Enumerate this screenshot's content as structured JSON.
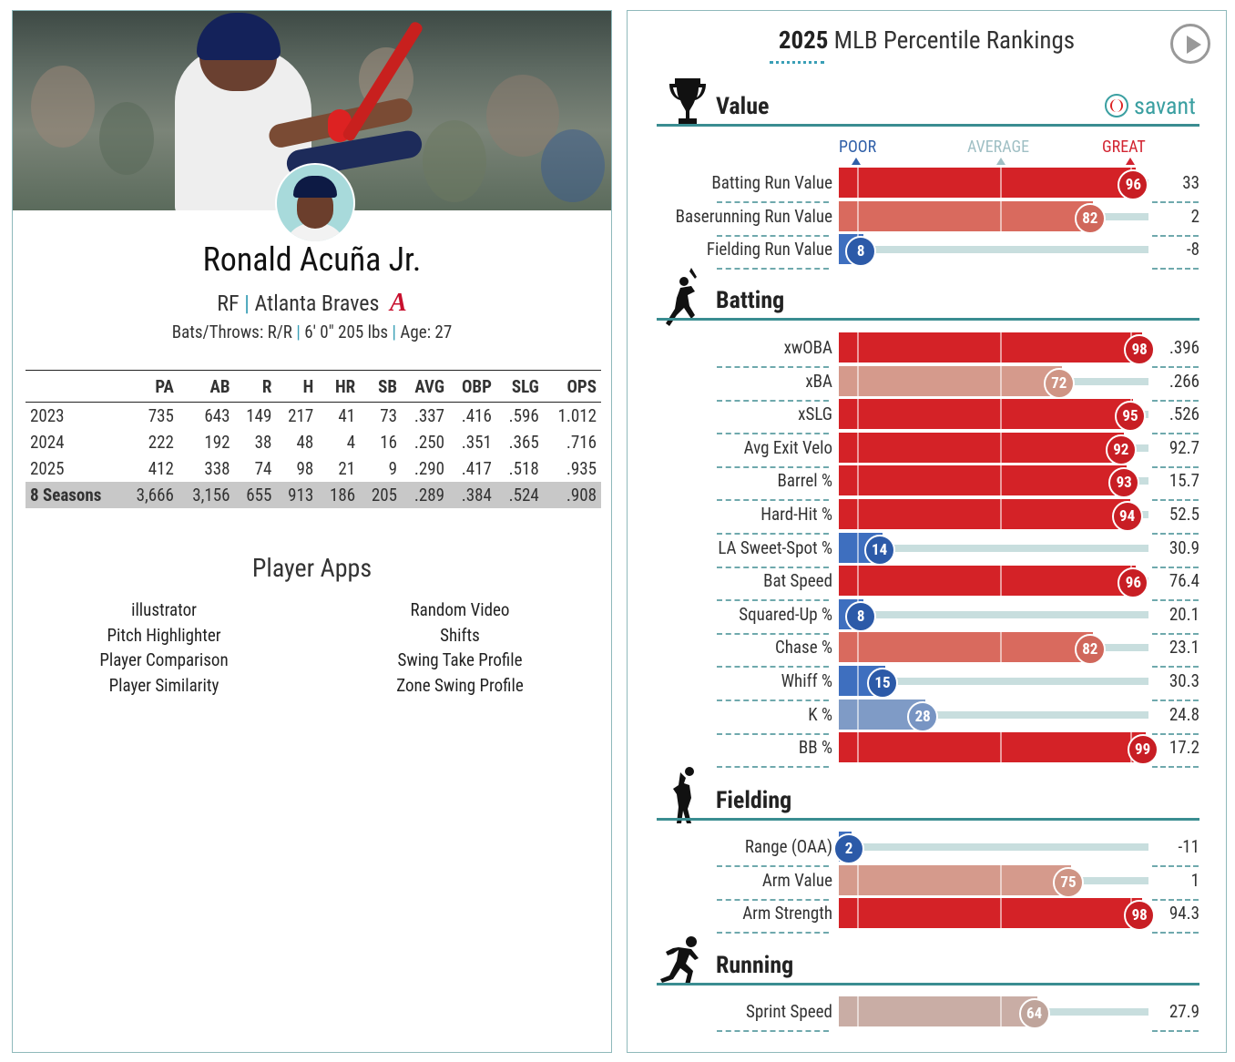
{
  "player": {
    "name": "Ronald Acuña Jr.",
    "position": "RF",
    "team": "Atlanta Braves",
    "bats_throws": "Bats/Throws: R/R",
    "height_weight": "6' 0\" 205 lbs",
    "age": "Age: 27"
  },
  "stats_table": {
    "headers": [
      "",
      "PA",
      "AB",
      "R",
      "H",
      "HR",
      "SB",
      "AVG",
      "OBP",
      "SLG",
      "OPS"
    ],
    "rows": [
      [
        "2023",
        "735",
        "643",
        "149",
        "217",
        "41",
        "73",
        ".337",
        ".416",
        ".596",
        "1.012"
      ],
      [
        "2024",
        "222",
        "192",
        "38",
        "48",
        "4",
        "16",
        ".250",
        ".351",
        ".365",
        ".716"
      ],
      [
        "2025",
        "412",
        "338",
        "74",
        "98",
        "21",
        "9",
        ".290",
        ".417",
        ".518",
        ".935"
      ]
    ],
    "total": [
      "8 Seasons",
      "3,666",
      "3,156",
      "655",
      "913",
      "186",
      "205",
      ".289",
      ".384",
      ".524",
      ".908"
    ]
  },
  "player_apps": {
    "title": "Player Apps",
    "left": [
      "illustrator",
      "Pitch Highlighter",
      "Player Comparison",
      "Player Similarity"
    ],
    "right": [
      "Random Video",
      "Shifts",
      "Swing Take Profile",
      "Zone Swing Profile"
    ]
  },
  "rankings": {
    "title_year": "2025",
    "title_rest": "MLB Percentile Rankings",
    "brand": "savant",
    "scale": {
      "poor": "POOR",
      "average": "AVERAGE",
      "great": "GREAT"
    },
    "colors": {
      "teal": "#3a8d91",
      "poor_label": "#2f5fa8",
      "avg_label": "#9fbfc4",
      "great_label": "#d22330"
    },
    "sections": [
      {
        "title": "Value",
        "icon": "trophy-icon",
        "rows": [
          {
            "label": "Batting Run Value",
            "pct": 96,
            "value": "33"
          },
          {
            "label": "Baserunning Run Value",
            "pct": 82,
            "value": "2"
          },
          {
            "label": "Fielding Run Value",
            "pct": 8,
            "value": "-8"
          }
        ]
      },
      {
        "title": "Batting",
        "icon": "batter-icon",
        "rows": [
          {
            "label": "xwOBA",
            "pct": 98,
            "value": ".396"
          },
          {
            "label": "xBA",
            "pct": 72,
            "value": ".266"
          },
          {
            "label": "xSLG",
            "pct": 95,
            "value": ".526"
          },
          {
            "label": "Avg Exit Velo",
            "pct": 92,
            "value": "92.7"
          },
          {
            "label": "Barrel %",
            "pct": 93,
            "value": "15.7"
          },
          {
            "label": "Hard-Hit %",
            "pct": 94,
            "value": "52.5"
          },
          {
            "label": "LA Sweet-Spot %",
            "pct": 14,
            "value": "30.9"
          },
          {
            "label": "Bat Speed",
            "pct": 96,
            "value": "76.4"
          },
          {
            "label": "Squared-Up %",
            "pct": 8,
            "value": "20.1"
          },
          {
            "label": "Chase %",
            "pct": 82,
            "value": "23.1"
          },
          {
            "label": "Whiff %",
            "pct": 15,
            "value": "30.3"
          },
          {
            "label": "K %",
            "pct": 28,
            "value": "24.8"
          },
          {
            "label": "BB %",
            "pct": 99,
            "value": "17.2"
          }
        ]
      },
      {
        "title": "Fielding",
        "icon": "fielder-icon",
        "rows": [
          {
            "label": "Range (OAA)",
            "pct": 2,
            "value": "-11"
          },
          {
            "label": "Arm Value",
            "pct": 75,
            "value": "1"
          },
          {
            "label": "Arm Strength",
            "pct": 98,
            "value": "94.3"
          }
        ]
      },
      {
        "title": "Running",
        "icon": "runner-icon",
        "rows": [
          {
            "label": "Sprint Speed",
            "pct": 64,
            "value": "27.9"
          }
        ]
      }
    ]
  }
}
